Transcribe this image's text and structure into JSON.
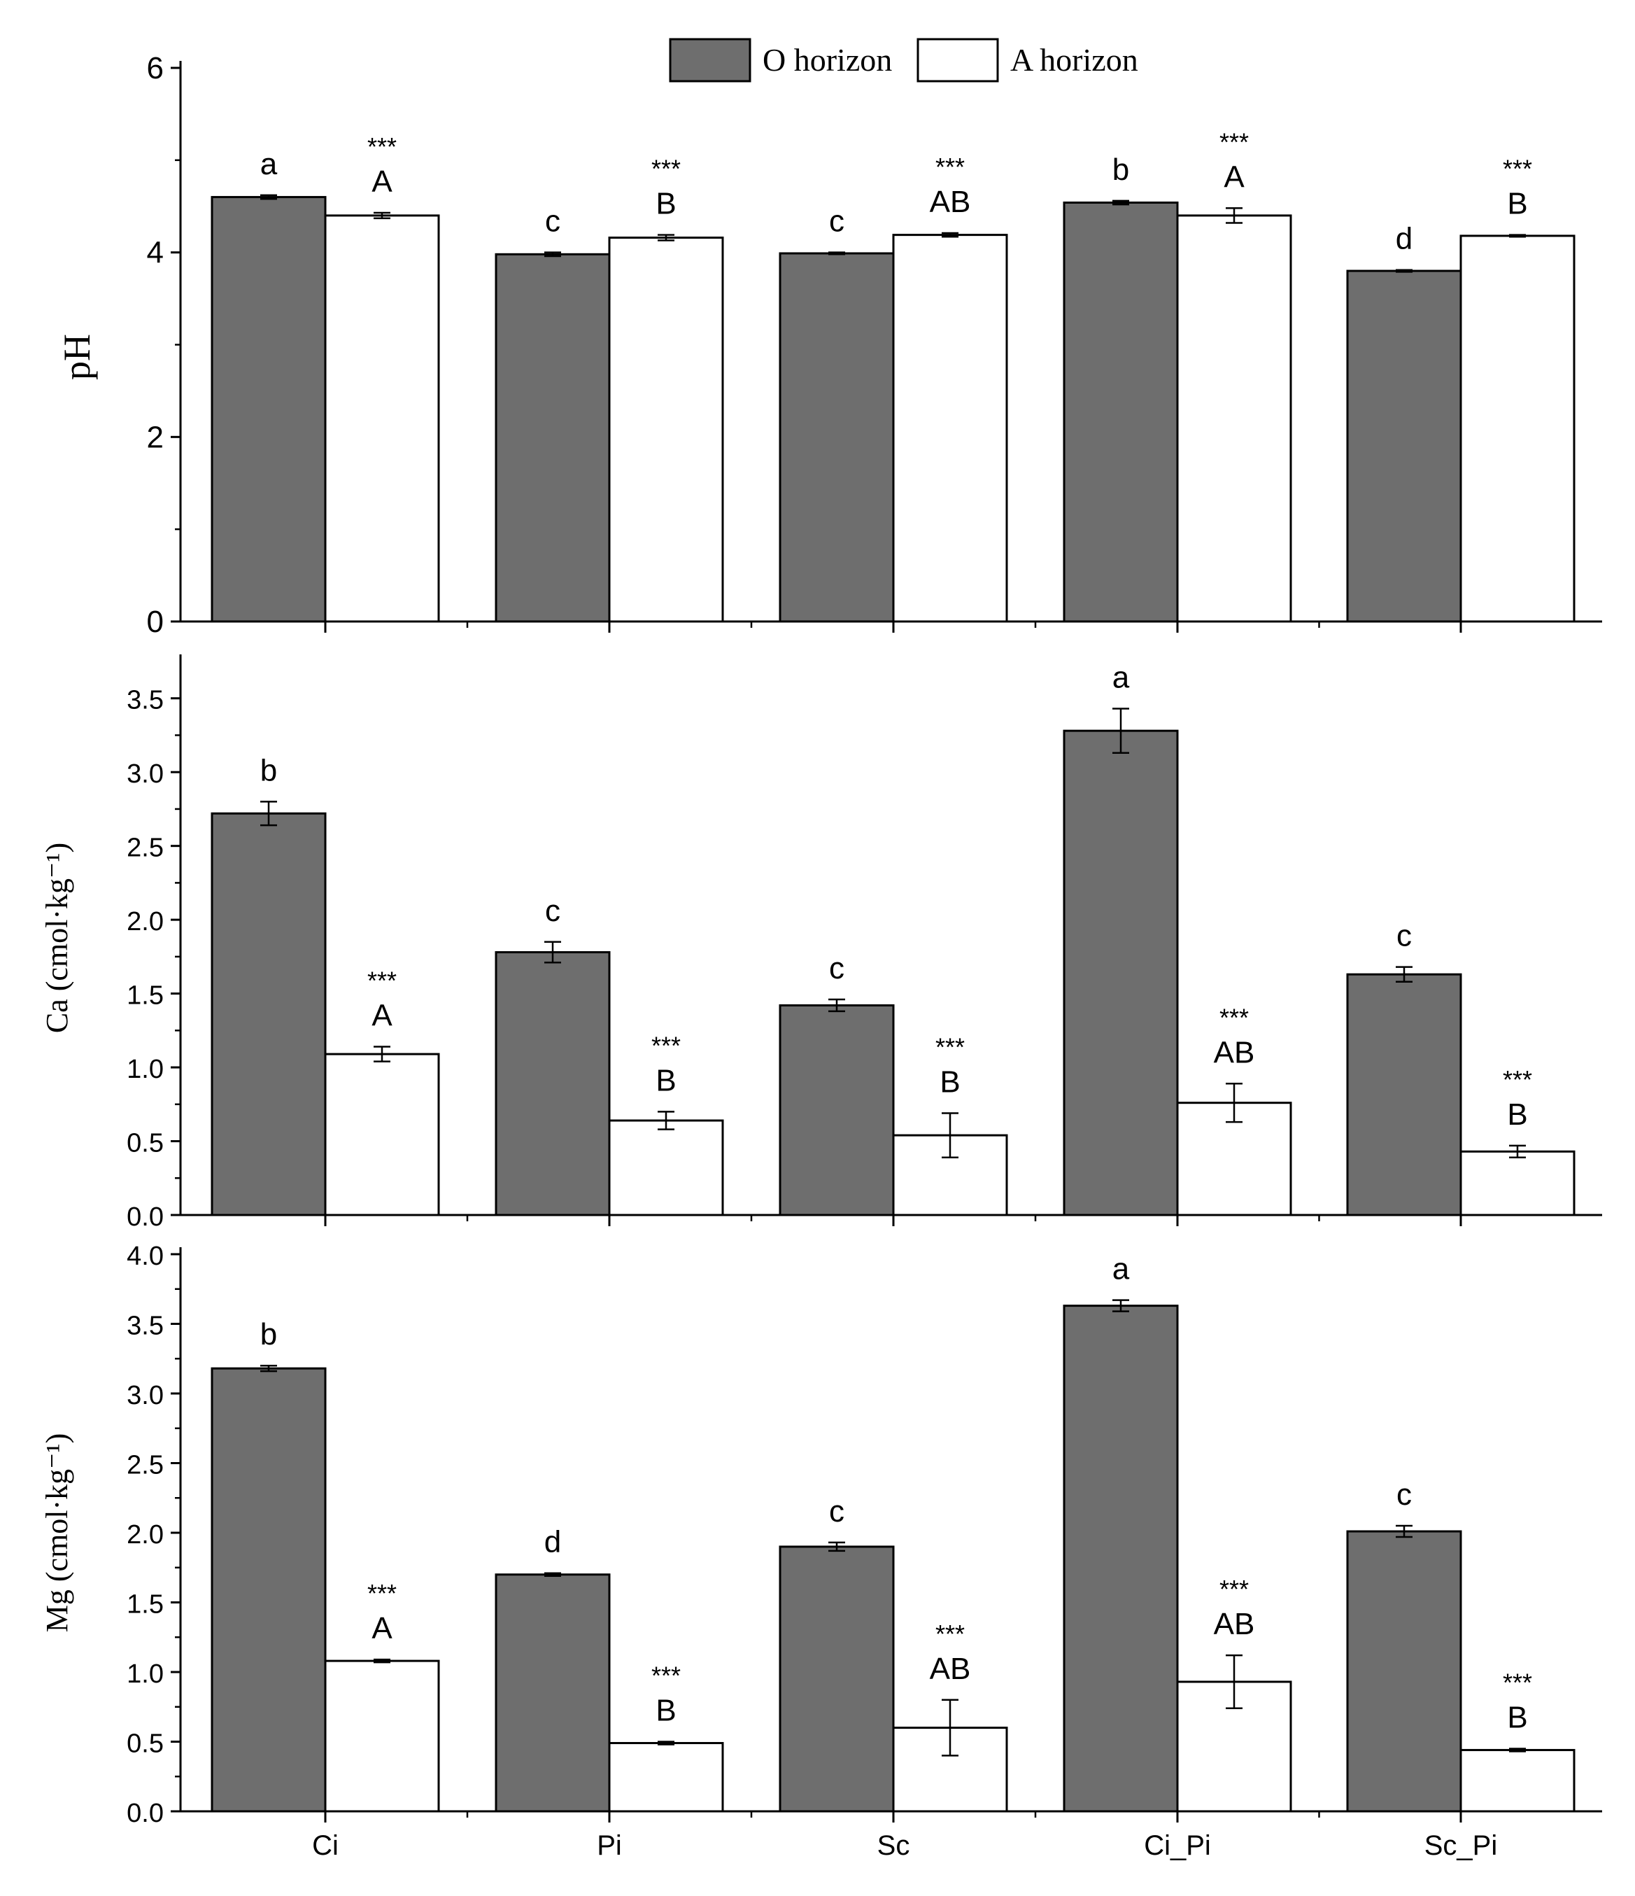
{
  "legend": {
    "items": [
      {
        "label": "O horizon",
        "color": "#6e6e6e"
      },
      {
        "label": "A horizon",
        "color": "#ffffff"
      }
    ]
  },
  "colors": {
    "o_bar": "#6e6e6e",
    "a_bar": "#ffffff",
    "axis": "#000000"
  },
  "chart_data": [
    {
      "type": "bar",
      "ylabel": "pH",
      "ylim": [
        0,
        6
      ],
      "yticks": [
        0,
        2,
        4,
        6
      ],
      "categories": [
        "Ci",
        "Pi",
        "Sc",
        "Ci_Pi",
        "Sc_Pi"
      ],
      "series": [
        {
          "name": "O horizon",
          "values": [
            4.6,
            3.98,
            3.99,
            4.54,
            3.8
          ],
          "errors": [
            0.02,
            0.02,
            0.01,
            0.02,
            0.01
          ],
          "letters": [
            "a",
            "c",
            "c",
            "b",
            "d"
          ]
        },
        {
          "name": "A horizon",
          "values": [
            4.4,
            4.16,
            4.19,
            4.4,
            4.18
          ],
          "errors": [
            0.03,
            0.03,
            0.02,
            0.08,
            0.01
          ],
          "letters": [
            "A",
            "B",
            "AB",
            "A",
            "B"
          ],
          "stars": [
            "***",
            "***",
            "***",
            "***",
            "***"
          ]
        }
      ]
    },
    {
      "type": "bar",
      "ylabel": "Ca (cmol·kg⁻¹)",
      "ylim": [
        0,
        3.75
      ],
      "yticks": [
        0.0,
        0.5,
        1.0,
        1.5,
        2.0,
        2.5,
        3.0,
        3.5
      ],
      "categories": [
        "Ci",
        "Pi",
        "Sc",
        "Ci_Pi",
        "Sc_Pi"
      ],
      "series": [
        {
          "name": "O horizon",
          "values": [
            2.72,
            1.78,
            1.42,
            3.28,
            1.63
          ],
          "errors": [
            0.08,
            0.07,
            0.04,
            0.15,
            0.05
          ],
          "letters": [
            "b",
            "c",
            "c",
            "a",
            "c"
          ]
        },
        {
          "name": "A horizon",
          "values": [
            1.09,
            0.64,
            0.54,
            0.76,
            0.43
          ],
          "errors": [
            0.05,
            0.06,
            0.15,
            0.13,
            0.04
          ],
          "letters": [
            "A",
            "B",
            "B",
            "AB",
            "B"
          ],
          "stars": [
            "***",
            "***",
            "***",
            "***",
            "***"
          ]
        }
      ]
    },
    {
      "type": "bar",
      "ylabel": "Mg (cmol·kg⁻¹)",
      "xlabel": "",
      "ylim": [
        0,
        4.0
      ],
      "yticks": [
        0.0,
        0.5,
        1.0,
        1.5,
        2.0,
        2.5,
        3.0,
        3.5,
        4.0
      ],
      "categories": [
        "Ci",
        "Pi",
        "Sc",
        "Ci_Pi",
        "Sc_Pi"
      ],
      "series": [
        {
          "name": "O horizon",
          "values": [
            3.18,
            1.7,
            1.9,
            3.63,
            2.01
          ],
          "errors": [
            0.02,
            0.01,
            0.03,
            0.04,
            0.04
          ],
          "letters": [
            "b",
            "d",
            "c",
            "a",
            "c"
          ]
        },
        {
          "name": "A horizon",
          "values": [
            1.08,
            0.49,
            0.6,
            0.93,
            0.44
          ],
          "errors": [
            0.01,
            0.01,
            0.2,
            0.19,
            0.01
          ],
          "letters": [
            "A",
            "B",
            "AB",
            "AB",
            "B"
          ],
          "stars": [
            "***",
            "***",
            "***",
            "***",
            "***"
          ]
        }
      ]
    }
  ]
}
